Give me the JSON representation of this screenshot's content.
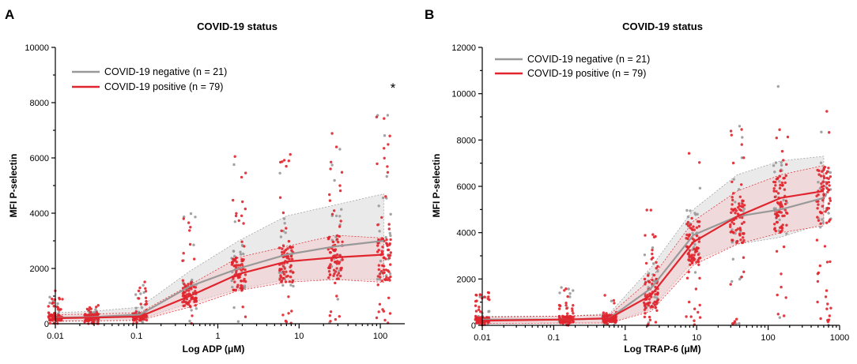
{
  "chart_data": [
    {
      "panel_letter": "A",
      "type": "scatter",
      "title": "COVID-19 status",
      "xlabel": "Log ADP (μM)",
      "ylabel": "MFI P-selectin",
      "xscale": "log",
      "xlim": [
        0.01,
        200
      ],
      "ylim": [
        0,
        10000
      ],
      "xticks": [
        0.01,
        0.1,
        1,
        10,
        100
      ],
      "xtick_labels": [
        "0.01",
        "0.1",
        "1",
        "10",
        "100"
      ],
      "yticks": [
        0,
        2000,
        4000,
        6000,
        8000,
        10000
      ],
      "ytick_labels": [
        "0",
        "2000",
        "4000",
        "6000",
        "8000",
        "10000"
      ],
      "legend_position": "top-left",
      "doses": [
        0.01,
        0.028,
        0.11,
        0.45,
        1.8,
        7,
        28,
        110
      ],
      "series": [
        {
          "name": "COVID-19 negative (n = 21)",
          "color": "#999999",
          "band_color": "#d9d9d9",
          "mean": [
            220,
            240,
            330,
            1350,
            2000,
            2500,
            2800,
            3000
          ],
          "lower": [
            80,
            100,
            150,
            750,
            1250,
            1600,
            1600,
            1600
          ],
          "upper": [
            400,
            450,
            600,
            1900,
            3000,
            3900,
            4300,
            4700
          ],
          "n": 21
        },
        {
          "name": "COVID-19 positive (n = 79)",
          "color": "#e0252e",
          "band_color": "#f4c7c9",
          "mean": [
            200,
            220,
            260,
            1000,
            1800,
            2250,
            2400,
            2500
          ],
          "lower": [
            100,
            100,
            120,
            600,
            1200,
            1500,
            1600,
            1500
          ],
          "upper": [
            330,
            350,
            400,
            1400,
            2400,
            2800,
            3200,
            3100
          ],
          "n": 79
        }
      ],
      "point_ranges": [
        [
          0,
          1200
        ],
        [
          0,
          700
        ],
        [
          0,
          1600
        ],
        [
          0,
          4200
        ],
        [
          0,
          6200
        ],
        [
          0,
          6300
        ],
        [
          0,
          7000
        ],
        [
          0,
          7700
        ]
      ],
      "annotation": {
        "text": "*",
        "x": 110,
        "y": 8500
      }
    },
    {
      "panel_letter": "B",
      "type": "scatter",
      "title": "COVID-19 status",
      "xlabel": "Log TRAP-6 (μM)",
      "ylabel": "MFI P-selectin",
      "xscale": "log",
      "xlim": [
        0.01,
        1000
      ],
      "ylim": [
        0,
        12000
      ],
      "xticks": [
        0.01,
        0.1,
        1,
        10,
        100,
        1000
      ],
      "xtick_labels": [
        "0.01",
        "0.1",
        "1",
        "10",
        "100",
        "1000"
      ],
      "yticks": [
        0,
        2000,
        4000,
        6000,
        8000,
        10000,
        12000
      ],
      "ytick_labels": [
        "0",
        "2000",
        "4000",
        "6000",
        "8000",
        "10000",
        "12000"
      ],
      "legend_position": "top-left",
      "doses": [
        0.01,
        0.15,
        0.6,
        2.3,
        9,
        37,
        150,
        600
      ],
      "series": [
        {
          "name": "COVID-19 negative (n = 21)",
          "color": "#999999",
          "band_color": "#d9d9d9",
          "mean": [
            250,
            250,
            300,
            1600,
            3900,
            4700,
            5000,
            5500
          ],
          "lower": [
            80,
            100,
            100,
            700,
            2800,
            3500,
            3800,
            4400
          ],
          "upper": [
            400,
            400,
            500,
            2500,
            5000,
            6500,
            7100,
            7300
          ],
          "n": 21
        },
        {
          "name": "COVID-19 positive (n = 79)",
          "color": "#e0252e",
          "band_color": "#f4c7c9",
          "mean": [
            200,
            250,
            300,
            1300,
            3600,
            4700,
            5500,
            5800
          ],
          "lower": [
            80,
            100,
            100,
            600,
            2600,
            3500,
            4000,
            4300
          ],
          "upper": [
            350,
            400,
            450,
            2000,
            4500,
            5800,
            6500,
            6900
          ],
          "n": 79
        }
      ],
      "point_ranges": [
        [
          0,
          1500
        ],
        [
          0,
          1700
        ],
        [
          0,
          1300
        ],
        [
          0,
          5000
        ],
        [
          0,
          7500
        ],
        [
          0,
          9200
        ],
        [
          0,
          10500
        ],
        [
          0,
          9800
        ]
      ]
    }
  ]
}
